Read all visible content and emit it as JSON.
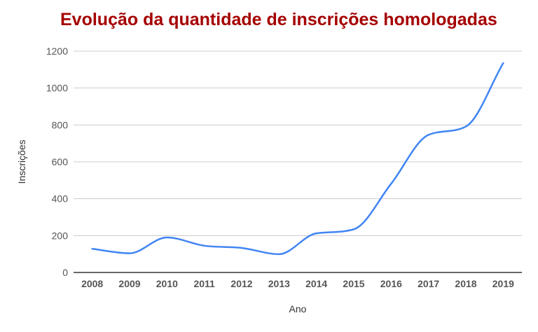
{
  "chart_data": {
    "type": "line",
    "title": "Evolução da quantidade de inscrições homologadas",
    "xlabel": "Ano",
    "ylabel": "Inscrições",
    "categories": [
      "2008",
      "2009",
      "2010",
      "2011",
      "2012",
      "2013",
      "2014",
      "2015",
      "2016",
      "2017",
      "2018",
      "2019"
    ],
    "series": [
      {
        "values": [
          128,
          104,
          190,
          145,
          133,
          99,
          212,
          234,
          481,
          746,
          791,
          1135
        ]
      }
    ],
    "ylim": [
      0,
      1200
    ],
    "yticks": [
      "0",
      "200",
      "400",
      "600",
      "800",
      "1000",
      "1200"
    ],
    "grid": true,
    "legend": "none",
    "colors": {
      "line": "#4285f4",
      "title": "#a50000",
      "grid": "#cccccc",
      "axis": "#333333"
    }
  }
}
